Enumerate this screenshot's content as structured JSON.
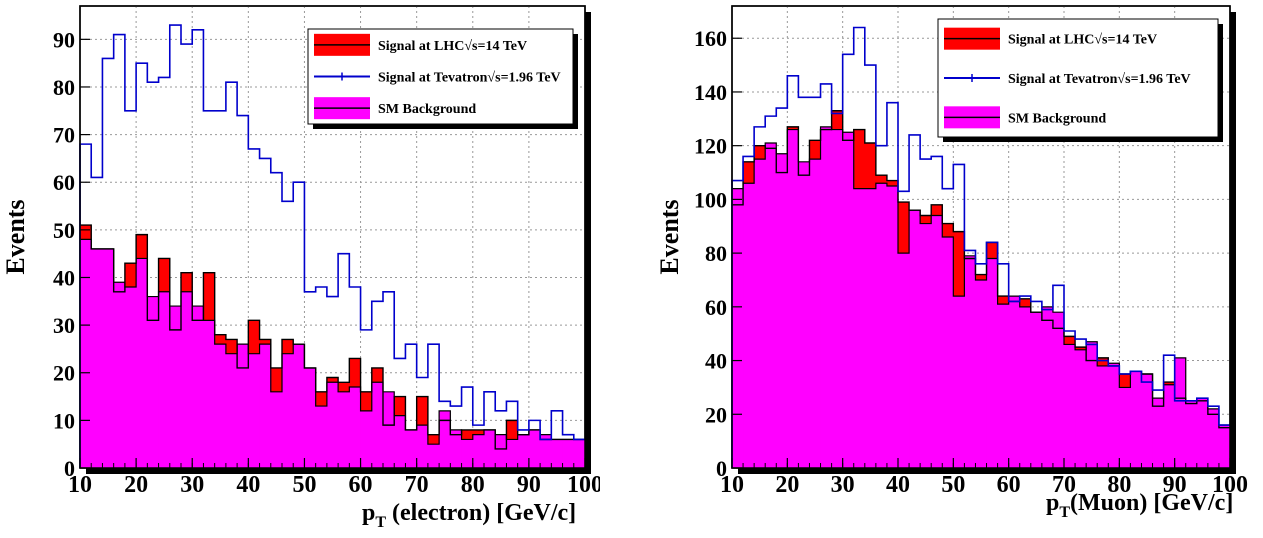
{
  "chart_data": [
    {
      "type": "step-histogram",
      "xlabel": "p_T (electron)   [GeV/c]",
      "xlabel_main": "p",
      "xlabel_sub": "T",
      "xlabel_rest": " (electron)   [GeV/c]",
      "ylabel": "Events",
      "xlim": [
        10,
        100
      ],
      "ylim": [
        0,
        97
      ],
      "grid": true,
      "legend_position": "top-right",
      "bin_start": 10,
      "bin_width": 2,
      "x_ticks": [
        10,
        20,
        30,
        40,
        50,
        60,
        70,
        80,
        90,
        100
      ],
      "y_ticks": [
        0,
        10,
        20,
        30,
        40,
        50,
        60,
        70,
        80,
        90
      ],
      "legend": [
        {
          "label": "Signal at LHC√s=14 TeV",
          "color": "#ff0000"
        },
        {
          "label": "Signal at Tevatron√s=1.96 TeV",
          "color": "#0000cc"
        },
        {
          "label": "SM Background",
          "color": "#ff00ff"
        }
      ],
      "series": [
        {
          "name": "Signal at LHC√s=14 TeV",
          "color": "#ff0000",
          "values": [
            51,
            46,
            46,
            37,
            43,
            49,
            31,
            44,
            29,
            41,
            31,
            41,
            28,
            27,
            21,
            31,
            27,
            21,
            27,
            26,
            21,
            16,
            19,
            18,
            23,
            16,
            21,
            9,
            15,
            8,
            15,
            7,
            10,
            7,
            8,
            8,
            8,
            4,
            10,
            7,
            8,
            6,
            6,
            6,
            6
          ]
        },
        {
          "name": "Signal at Tevatron√s=1.96 TeV",
          "color": "#0000cc",
          "values": [
            68,
            61,
            86,
            91,
            75,
            85,
            81,
            82,
            93,
            89,
            92,
            75,
            75,
            81,
            74,
            67,
            65,
            62,
            56,
            60,
            37,
            38,
            36,
            45,
            38,
            29,
            35,
            37,
            23,
            26,
            19,
            26,
            14,
            13,
            17,
            9,
            16,
            12,
            14,
            8,
            10,
            6,
            12,
            7,
            6
          ]
        },
        {
          "name": "SM Background",
          "color": "#ff00ff",
          "values": [
            48,
            46,
            46,
            39,
            38,
            44,
            36,
            37,
            34,
            37,
            34,
            31,
            26,
            24,
            26,
            24,
            26,
            16,
            24,
            26,
            21,
            13,
            18,
            16,
            17,
            12,
            18,
            16,
            11,
            8,
            9,
            5,
            12,
            8,
            6,
            7,
            8,
            7,
            6,
            7,
            8,
            7,
            6,
            6,
            6
          ]
        }
      ]
    },
    {
      "type": "step-histogram",
      "xlabel": "p_T(Muon) [GeV/c]",
      "xlabel_main": "p",
      "xlabel_sub": "T",
      "xlabel_rest": "(Muon) [GeV/c]",
      "ylabel": "Events",
      "xlim": [
        10,
        100
      ],
      "ylim": [
        0,
        172
      ],
      "grid": true,
      "legend_position": "top-right",
      "bin_start": 10,
      "bin_width": 2,
      "x_ticks": [
        10,
        20,
        30,
        40,
        50,
        60,
        70,
        80,
        90,
        100
      ],
      "y_ticks": [
        0,
        20,
        40,
        60,
        80,
        100,
        120,
        140,
        160
      ],
      "legend": [
        {
          "label": "Signal at LHC√s=14 TeV",
          "color": "#ff0000"
        },
        {
          "label": "Signal at Tevatron√s=1.96 TeV",
          "color": "#0000cc"
        },
        {
          "label": "SM Background",
          "color": "#ff00ff"
        }
      ],
      "series": [
        {
          "name": "Signal at LHC√s=14 TeV",
          "color": "#ff0000",
          "values": [
            98,
            114,
            120,
            119,
            110,
            127,
            109,
            122,
            126,
            133,
            122,
            126,
            121,
            109,
            107,
            99,
            96,
            94,
            98,
            91,
            88,
            78,
            72,
            84,
            64,
            62,
            63,
            58,
            55,
            52,
            49,
            45,
            40,
            41,
            38,
            35,
            36,
            35,
            23,
            32,
            26,
            24,
            25,
            20,
            15
          ]
        },
        {
          "name": "Signal at Tevatron√s=1.96 TeV",
          "color": "#0000cc",
          "values": [
            107,
            116,
            127,
            131,
            134,
            146,
            138,
            138,
            143,
            132,
            154,
            164,
            150,
            120,
            136,
            103,
            124,
            115,
            116,
            104,
            113,
            81,
            76,
            84,
            76,
            62,
            64,
            62,
            59,
            68,
            51,
            48,
            46,
            40,
            38,
            35,
            36,
            32,
            29,
            42,
            25,
            25,
            26,
            23,
            16
          ]
        },
        {
          "name": "SM Background",
          "color": "#ff00ff",
          "values": [
            104,
            106,
            115,
            121,
            117,
            126,
            114,
            115,
            127,
            126,
            125,
            104,
            104,
            106,
            105,
            80,
            96,
            91,
            94,
            86,
            64,
            79,
            70,
            78,
            61,
            64,
            60,
            58,
            60,
            58,
            46,
            44,
            47,
            38,
            39,
            30,
            36,
            35,
            26,
            31,
            41,
            25,
            26,
            22,
            16
          ]
        }
      ]
    }
  ]
}
